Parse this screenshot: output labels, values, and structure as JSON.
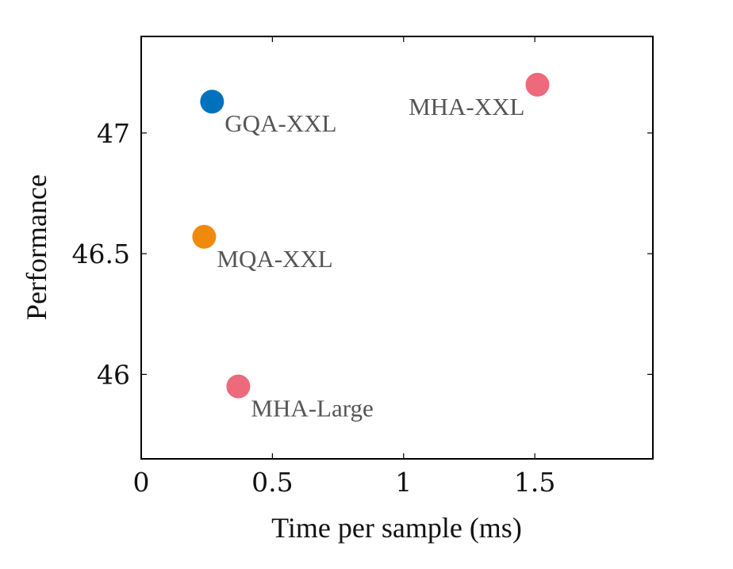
{
  "chart_data": {
    "type": "scatter",
    "title": "",
    "xlabel": "Time per sample (ms)",
    "ylabel": "Performance",
    "xlim": [
      0,
      1.95
    ],
    "ylim": [
      45.65,
      47.4
    ],
    "grid": false,
    "xticks": [
      {
        "value": 0,
        "label": "0"
      },
      {
        "value": 0.5,
        "label": "0.5"
      },
      {
        "value": 1,
        "label": "1"
      },
      {
        "value": 1.5,
        "label": "1.5"
      }
    ],
    "yticks": [
      {
        "value": 46,
        "label": "46"
      },
      {
        "value": 46.5,
        "label": "46.5"
      },
      {
        "value": 47,
        "label": "47"
      }
    ],
    "points": [
      {
        "name": "GQA-XXL",
        "x": 0.27,
        "y": 47.13,
        "color": "#0072bd",
        "label_pos": "below-right"
      },
      {
        "name": "MHA-XXL",
        "x": 1.51,
        "y": 47.2,
        "color": "#ec6a7c",
        "label_pos": "below-left"
      },
      {
        "name": "MQA-XXL",
        "x": 0.24,
        "y": 46.57,
        "color": "#f08a0c",
        "label_pos": "below-right"
      },
      {
        "name": "MHA-Large",
        "x": 0.37,
        "y": 45.95,
        "color": "#ec6a7c",
        "label_pos": "below-right"
      }
    ]
  }
}
